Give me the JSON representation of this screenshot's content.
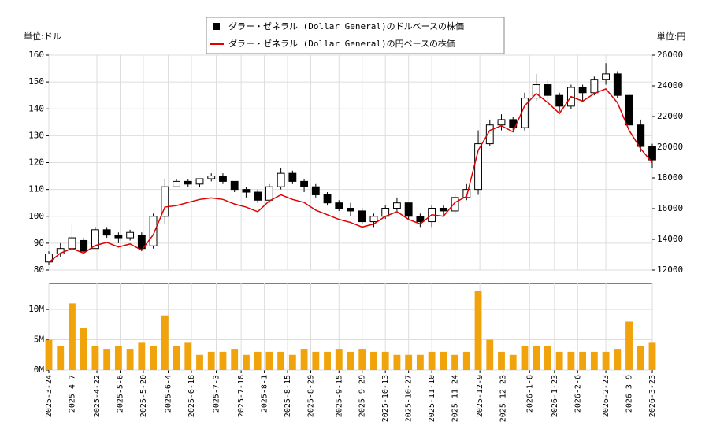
{
  "chart_data": [
    {
      "type": "candlestick",
      "name": "ダラー・ゼネラル (Dollar General)のドルベースの株価",
      "color": "#000000",
      "ylabel": "単位:ドル",
      "y2label": "単位:円",
      "xlim": [
        "2025-3-24",
        "2026-3-23"
      ],
      "x": [
        "2025-3-24",
        "2025-3-31",
        "2025-4-7",
        "2025-4-14",
        "2025-4-21",
        "2025-4-28",
        "2025-5-5",
        "2025-5-12",
        "2025-5-19",
        "2025-5-26",
        "2025-6-2",
        "2025-6-9",
        "2025-6-16",
        "2025-6-23",
        "2025-6-30",
        "2025-7-7",
        "2025-7-14",
        "2025-7-21",
        "2025-7-28",
        "2025-8-4",
        "2025-8-11",
        "2025-8-18",
        "2025-8-25",
        "2025-9-1",
        "2025-9-8",
        "2025-9-15",
        "2025-9-22",
        "2025-9-29",
        "2025-10-6",
        "2025-10-13",
        "2025-10-20",
        "2025-10-27",
        "2025-11-3",
        "2025-11-10",
        "2025-11-17",
        "2025-11-24",
        "2025-12-1",
        "2025-12-8",
        "2025-12-15",
        "2025-12-22",
        "2025-12-29",
        "2026-1-5",
        "2026-1-12",
        "2026-1-19",
        "2026-1-26",
        "2026-2-2",
        "2026-2-9",
        "2026-2-16",
        "2026-2-23",
        "2026-3-2",
        "2026-3-9",
        "2026-3-16",
        "2026-3-23"
      ],
      "open": [
        83,
        86,
        88,
        91,
        88,
        95,
        93,
        92,
        93,
        89,
        100,
        111,
        113,
        112,
        114,
        115,
        113,
        110,
        109,
        106,
        111,
        116,
        113,
        111,
        108,
        105,
        103,
        102,
        98,
        100,
        103,
        105,
        100,
        98,
        103,
        102,
        107,
        110,
        127,
        134,
        136,
        133,
        144,
        149,
        145,
        141,
        148,
        146,
        151,
        153,
        145,
        134,
        126
      ],
      "high": [
        87,
        90,
        97,
        92,
        96,
        96,
        94,
        95,
        94,
        101,
        114,
        114,
        114,
        114,
        116,
        116,
        113,
        111,
        110,
        112,
        118,
        117,
        114,
        112,
        109,
        106,
        105,
        103,
        101,
        104,
        107,
        105,
        101,
        104,
        104,
        108,
        112,
        132,
        136,
        138,
        137,
        146,
        153,
        151,
        146,
        149,
        149,
        152,
        157,
        154,
        146,
        136,
        127
      ],
      "low": [
        82,
        85,
        86,
        86,
        88,
        92,
        90,
        91,
        87,
        88,
        97,
        111,
        111,
        111,
        113,
        112,
        109,
        107,
        105,
        105,
        110,
        112,
        109,
        107,
        104,
        102,
        100,
        97,
        96,
        99,
        102,
        99,
        96,
        96,
        100,
        101,
        106,
        108,
        126,
        132,
        132,
        132,
        143,
        143,
        139,
        140,
        143,
        145,
        149,
        144,
        130,
        124,
        118
      ],
      "close": [
        86,
        88,
        92,
        87,
        95,
        93,
        92,
        94,
        88,
        100,
        111,
        113,
        112,
        114,
        115,
        113,
        110,
        109,
        106,
        111,
        116,
        113,
        111,
        108,
        105,
        103,
        102,
        98,
        100,
        103,
        105,
        100,
        98,
        103,
        102,
        107,
        110,
        127,
        134,
        136,
        133,
        144,
        149,
        145,
        141,
        148,
        146,
        151,
        153,
        145,
        134,
        126,
        121
      ],
      "series": [
        {
          "name": "ダラー・ゼネラル (Dollar General)の円ベースの株価",
          "color": "#e00000",
          "axis": "y2",
          "values": [
            12500,
            13100,
            13400,
            13100,
            13600,
            13800,
            13500,
            13700,
            13300,
            14300,
            16100,
            16200,
            16400,
            16600,
            16700,
            16600,
            16300,
            16100,
            15800,
            16500,
            16900,
            16600,
            16400,
            15900,
            15600,
            15300,
            15100,
            14800,
            15000,
            15500,
            15800,
            15300,
            15000,
            15600,
            15500,
            16400,
            16800,
            19800,
            21100,
            21400,
            21000,
            22700,
            23500,
            22900,
            22200,
            23300,
            23000,
            23500,
            23800,
            22900,
            21100,
            19900,
            19000
          ]
        }
      ],
      "ylim": [
        80,
        160
      ],
      "yticks": [
        80,
        90,
        100,
        110,
        120,
        130,
        140,
        150,
        160
      ],
      "y2lim": [
        12000,
        26000
      ],
      "y2ticks": [
        12000,
        14000,
        16000,
        18000,
        20000,
        22000,
        24000,
        26000
      ],
      "grid": true
    },
    {
      "type": "bar",
      "color": "#f0a30a",
      "values": [
        5,
        4,
        11,
        7,
        4,
        3.5,
        4,
        3.5,
        4.5,
        4,
        9,
        4,
        4.5,
        2.5,
        3,
        3,
        3.5,
        2.5,
        3,
        3,
        3,
        2.5,
        3.5,
        3,
        3,
        3.5,
        3,
        3.5,
        3,
        3,
        2.5,
        2.5,
        2.5,
        3,
        3,
        2.5,
        3,
        13,
        5,
        3,
        2.5,
        4,
        4,
        4,
        3,
        3,
        3,
        3,
        3,
        3.5,
        8,
        4,
        4.5
      ],
      "ylim": [
        0,
        14.3
      ],
      "yticks": [
        {
          "value": 0,
          "label": "0M"
        },
        {
          "value": 5,
          "label": "5M"
        },
        {
          "value": 10,
          "label": "10M"
        }
      ],
      "xticks": [
        "2025-3-24",
        "2025-4-7",
        "2025-4-22",
        "2025-5-6",
        "2025-5-20",
        "2025-6-4",
        "2025-6-18",
        "2025-7-3",
        "2025-7-18",
        "2025-8-1",
        "2025-8-15",
        "2025-8-29",
        "2025-9-15",
        "2025-9-29",
        "2025-10-13",
        "2025-10-27",
        "2025-11-10",
        "2025-11-24",
        "2025-12-9",
        "2025-12-23",
        "2026-1-8",
        "2026-1-23",
        "2026-2-6",
        "2026-2-23",
        "2026-3-9",
        "2026-3-23"
      ],
      "grid": true
    }
  ]
}
